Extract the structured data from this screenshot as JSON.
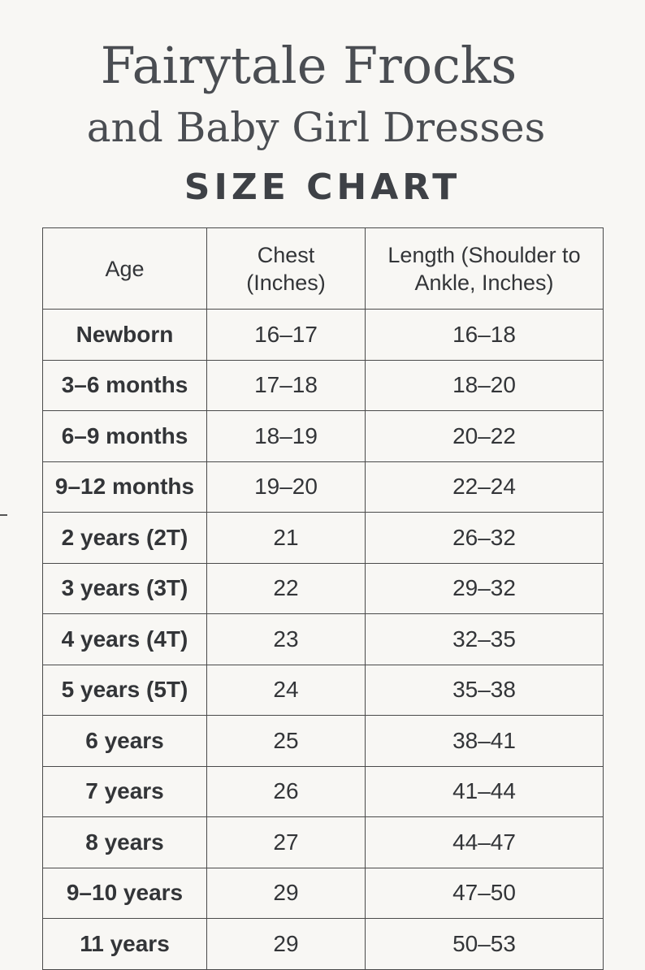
{
  "title": {
    "line1": "Fairytale Frocks",
    "line2": "and Baby Girl Dresses",
    "subtitle": "SIZE CHART"
  },
  "table": {
    "headers": [
      "Age",
      "Chest (Inches)",
      "Length (Shoulder to Ankle, Inches)"
    ],
    "rows": [
      {
        "age": "Newborn",
        "chest": "16–17",
        "length": "16–18"
      },
      {
        "age": "3–6 months",
        "chest": "17–18",
        "length": "18–20"
      },
      {
        "age": "6–9 months",
        "chest": "18–19",
        "length": "20–22"
      },
      {
        "age": "9–12 months",
        "chest": "19–20",
        "length": "22–24"
      },
      {
        "age": "2 years (2T)",
        "chest": "21",
        "length": "26–32"
      },
      {
        "age": "3 years (3T)",
        "chest": "22",
        "length": "29–32"
      },
      {
        "age": "4 years (4T)",
        "chest": "23",
        "length": "32–35"
      },
      {
        "age": "5 years (5T)",
        "chest": "24",
        "length": "35–38"
      },
      {
        "age": "6 years",
        "chest": "25",
        "length": "38–41"
      },
      {
        "age": "7 years",
        "chest": "26",
        "length": "41–44"
      },
      {
        "age": "8 years",
        "chest": "27",
        "length": "44–47"
      },
      {
        "age": "9–10 years",
        "chest": "29",
        "length": "47–50"
      },
      {
        "age": "11 years",
        "chest": "29",
        "length": "50–53"
      }
    ]
  },
  "colors": {
    "background": "#f8f7f4",
    "text": "#3a3d42",
    "border": "#4a4a4a"
  }
}
